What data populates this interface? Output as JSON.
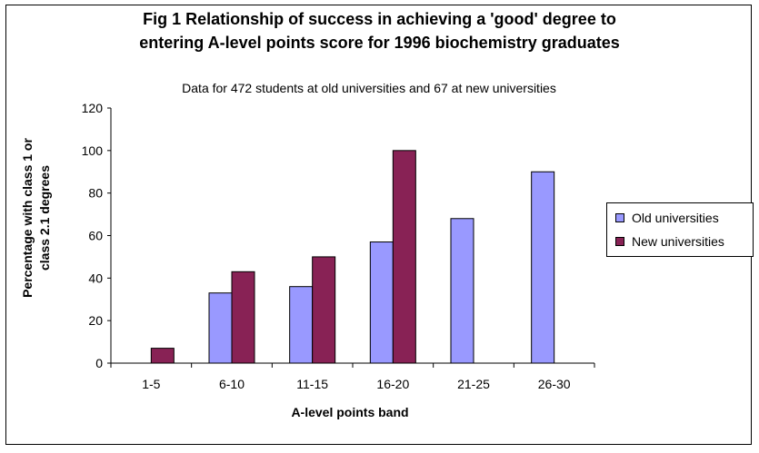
{
  "chart_data": {
    "type": "bar",
    "title_lines": [
      "Fig 1  Relationship of success in achieving a 'good' degree to",
      "entering A-level points score for 1996 biochemistry graduates"
    ],
    "subtitle": "Data for 472 students at old universities and 67 at new universities",
    "xlabel": "A-level points band",
    "ylabel_lines": [
      "Percentage with class 1 or",
      "class 2.1 degrees"
    ],
    "categories": [
      "1-5",
      "6-10",
      "11-15",
      "16-20",
      "21-25",
      "26-30"
    ],
    "series": [
      {
        "name": "Old universities",
        "color": "#9999ff",
        "values": [
          null,
          33,
          36,
          57,
          68,
          90
        ]
      },
      {
        "name": "New universities",
        "color": "#882255",
        "values": [
          7,
          43,
          50,
          100,
          null,
          null
        ]
      }
    ],
    "ylim": [
      0,
      120
    ],
    "yticks": [
      0,
      20,
      40,
      60,
      80,
      100,
      120
    ],
    "grid": false,
    "legend_position": "right"
  }
}
